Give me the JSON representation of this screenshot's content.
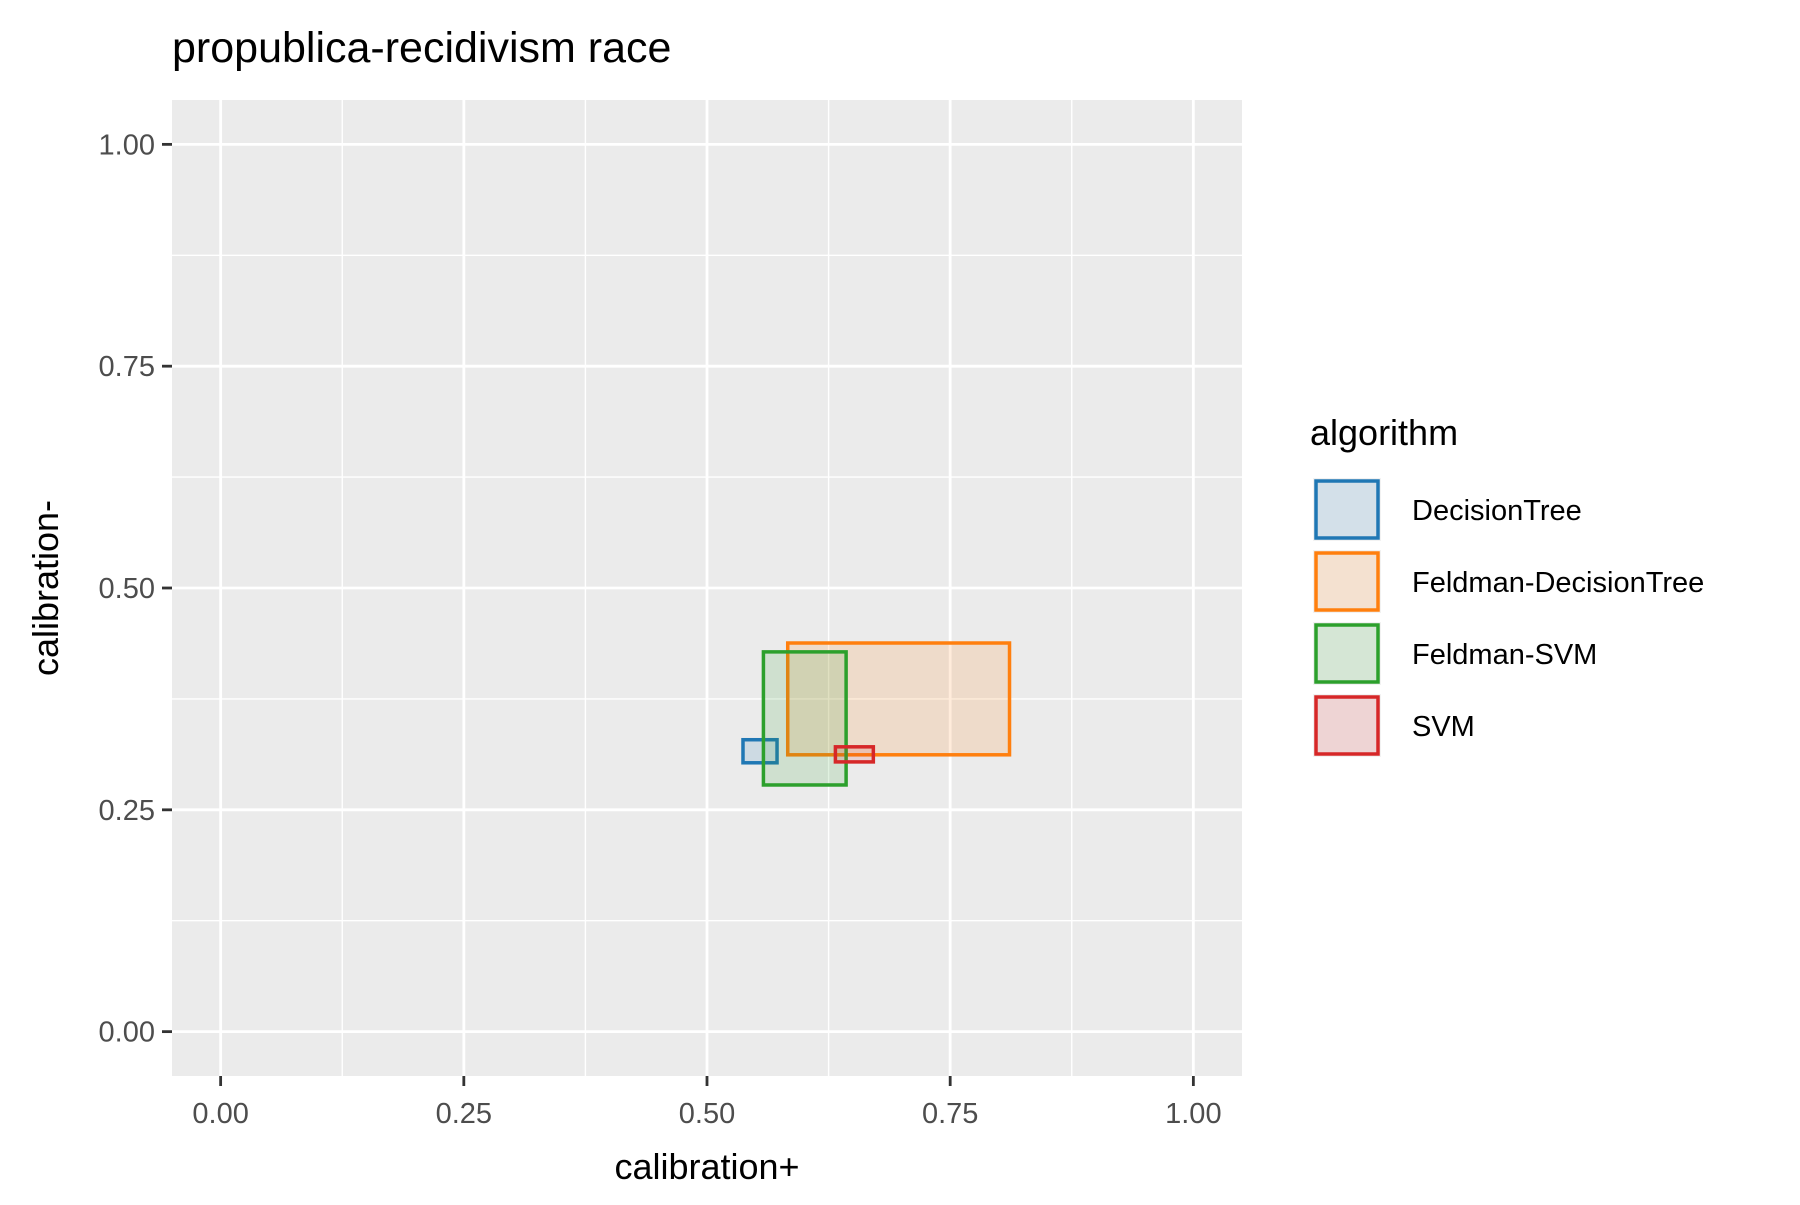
{
  "chart_data": {
    "type": "rect",
    "title": "propublica-recidivism race",
    "xlabel": "calibration+",
    "ylabel": "calibration-",
    "xlim": [
      -0.05,
      1.05
    ],
    "ylim": [
      -0.05,
      1.05
    ],
    "x_ticks": [
      "0.00",
      "0.25",
      "0.50",
      "0.75",
      "1.00"
    ],
    "y_ticks": [
      "0.00",
      "0.25",
      "0.50",
      "0.75",
      "1.00"
    ],
    "grid": true,
    "legend_position": "right",
    "legend_title": "algorithm",
    "series": [
      {
        "name": "DecisionTree",
        "color": "#1f77b4",
        "xmin": 0.537,
        "xmax": 0.572,
        "ymin": 0.303,
        "ymax": 0.329
      },
      {
        "name": "Feldman-DecisionTree",
        "color": "#ff7f0e",
        "xmin": 0.583,
        "xmax": 0.811,
        "ymin": 0.312,
        "ymax": 0.438
      },
      {
        "name": "Feldman-SVM",
        "color": "#2ca02c",
        "xmin": 0.558,
        "xmax": 0.643,
        "ymin": 0.278,
        "ymax": 0.428
      },
      {
        "name": "SVM",
        "color": "#d62728",
        "xmin": 0.632,
        "xmax": 0.671,
        "ymin": 0.304,
        "ymax": 0.321
      }
    ]
  }
}
